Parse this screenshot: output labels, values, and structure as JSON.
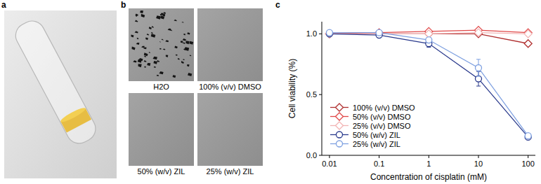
{
  "panels": {
    "a": {
      "label": "a"
    },
    "b": {
      "label": "b",
      "images": [
        "H2O",
        "100% (v/v) DMSO",
        "50% (w/v) ZIL",
        "25% (w/v) ZIL"
      ]
    },
    "c": {
      "label": "c"
    }
  },
  "chart_data": {
    "type": "line",
    "x_label": "Concentration of cisplatin (mM)",
    "y_label": "Cell viability (%)",
    "x": [
      0.01,
      0.1,
      1,
      10,
      100
    ],
    "log": "x",
    "xlim": [
      0.007,
      140
    ],
    "xticks": [
      0.01,
      0.1,
      1,
      10,
      100
    ],
    "ylim": [
      0,
      1.1
    ],
    "yticks": [
      {
        "value": 0,
        "label": "0.0"
      },
      {
        "value": 0.5,
        "label": "0.5"
      },
      {
        "value": 1,
        "label": "1.0"
      }
    ],
    "grid": false,
    "legend": "lower left",
    "series": [
      {
        "name": "100% (v/v) DMSO",
        "color": "#b03030",
        "marker": "diamond",
        "values": [
          1.0,
          1.0,
          1.0,
          1.0,
          0.92
        ]
      },
      {
        "name": "50% (v/v) DMSO",
        "color": "#e04848",
        "marker": "diamond",
        "values": [
          1.0,
          1.01,
          1.02,
          1.03,
          1.01
        ]
      },
      {
        "name": "25% (v/v) DMSO",
        "color": "#f2b4b4",
        "marker": "diamond",
        "values": [
          1.0,
          1.0,
          1.0,
          1.01,
          1.0
        ]
      },
      {
        "name": "50% (w/v) ZIL",
        "color": "#2a3a8c",
        "marker": "circle",
        "values": [
          1.0,
          0.99,
          0.92,
          0.63,
          0.15
        ],
        "errors": [
          0.01,
          0.01,
          0.03,
          0.06,
          0.01
        ]
      },
      {
        "name": "25% (w/v) ZIL",
        "color": "#7ea0e0",
        "marker": "circle",
        "values": [
          1.01,
          1.01,
          0.95,
          0.72,
          0.16
        ],
        "errors": [
          0.01,
          0.01,
          0.02,
          0.07,
          0.01
        ]
      }
    ]
  }
}
